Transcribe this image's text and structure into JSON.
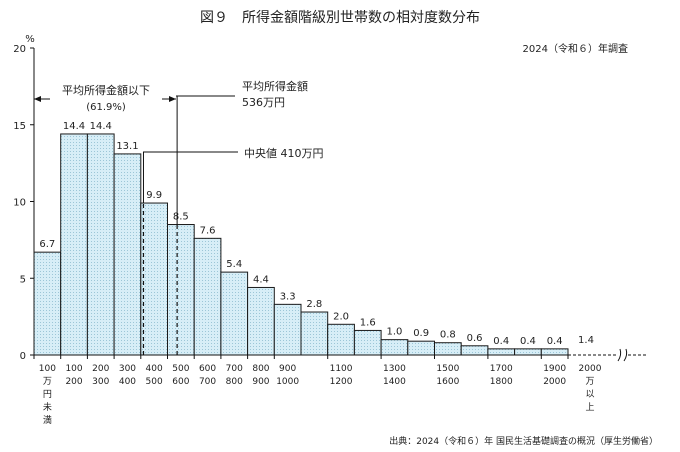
{
  "figure": {
    "title": "図９　所得金額階級別世帯数の相対度数分布",
    "survey_note": "2024（令和６）年調査",
    "source": "出典：2024（令和６）年 国民生活基礎調査の概況（厚生労働省）"
  },
  "annotations": {
    "below_mean_label": "平均所得金額以下",
    "below_mean_value": "(61.9%)",
    "mean_label": "平均所得金額",
    "mean_value": "536万円",
    "median_label": "中央値 410万円"
  },
  "chart_data": {
    "type": "bar",
    "ylabel": "%",
    "ylim": [
      0,
      20
    ],
    "yticks": [
      "0",
      "5",
      "10",
      "15",
      "20"
    ],
    "grid": false,
    "bar_fill": "#d7eef7",
    "bar_stroke": "#1a1a1a",
    "mean": 536,
    "median": 410,
    "categories": [
      "100万円未満",
      "100-200",
      "200-300",
      "300-400",
      "400-500",
      "500-600",
      "600-700",
      "700-800",
      "800-900",
      "900-1000",
      "1000-1100",
      "1100-1200",
      "1200-1300",
      "1300-1400",
      "1400-1500",
      "1500-1600",
      "1600-1700",
      "1700-1800",
      "1800-1900",
      "1900-2000",
      "2000万円以上"
    ],
    "values": [
      6.7,
      14.4,
      14.4,
      13.1,
      9.9,
      8.5,
      7.6,
      5.4,
      4.4,
      3.3,
      2.8,
      2.0,
      1.6,
      1.0,
      0.9,
      0.8,
      0.6,
      0.4,
      0.4,
      0.4,
      1.4
    ],
    "value_labels": [
      "6.7",
      "14.4",
      "14.4",
      "13.1",
      "9.9",
      "8.5",
      "7.6",
      "5.4",
      "4.4",
      "3.3",
      "2.8",
      "2.0",
      "1.6",
      "1.0",
      "0.9",
      "0.8",
      "0.6",
      "0.4",
      "0.4",
      "0.4",
      "1.4"
    ],
    "x_tick_labels": [
      {
        "top": "100",
        "bottom": "万"
      },
      {
        "top": "100",
        "bottom": "200"
      },
      {
        "top": "200",
        "bottom": "300"
      },
      {
        "top": "300",
        "bottom": "400"
      },
      {
        "top": "400",
        "bottom": "500"
      },
      {
        "top": "500",
        "bottom": "600"
      },
      {
        "top": "600",
        "bottom": "700"
      },
      {
        "top": "700",
        "bottom": "800"
      },
      {
        "top": "800",
        "bottom": "900"
      },
      {
        "top": "900",
        "bottom": "1000"
      },
      {
        "top": "1100",
        "bottom": "1200"
      },
      {
        "top": "1300",
        "bottom": "1400"
      },
      {
        "top": "1500",
        "bottom": "1600"
      },
      {
        "top": "1700",
        "bottom": "1800"
      },
      {
        "top": "1900",
        "bottom": "2000"
      },
      {
        "top": "2000",
        "bottom": "万"
      }
    ],
    "first_tick_extra": [
      "円",
      "未",
      "満"
    ],
    "last_tick_extra": [
      "以",
      "上"
    ]
  }
}
